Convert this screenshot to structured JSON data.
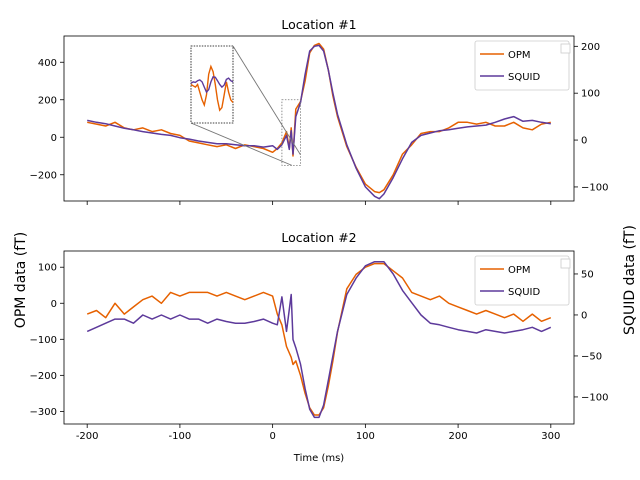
{
  "chart_data": {
    "type": "line",
    "shared_xlabel": "Time (ms)",
    "shared_ylabel_left": "OPM data (fT)",
    "shared_ylabel_right": "SQUID data (fT)",
    "colors": {
      "opm": "#e66100",
      "squid": "#5d3a9b"
    },
    "panels": [
      {
        "title": "Location #1",
        "xlim": [
          -225,
          325
        ],
        "ylim_left": [
          -340,
          540
        ],
        "ylim_right": [
          -130,
          222
        ],
        "xticks": [
          -200,
          -100,
          0,
          100,
          200,
          300
        ],
        "yticks_left": [
          -200,
          0,
          200,
          400
        ],
        "yticks_right": [
          -100,
          0,
          100,
          200
        ],
        "legend": [
          "OPM",
          "SQUID"
        ],
        "legend_position": "top-right",
        "series": [
          {
            "name": "OPM",
            "axis": "left",
            "x": [
              -200,
              -190,
              -180,
              -170,
              -160,
              -150,
              -140,
              -130,
              -120,
              -110,
              -100,
              -90,
              -80,
              -70,
              -60,
              -50,
              -40,
              -30,
              -20,
              -10,
              0,
              5,
              10,
              15,
              18,
              20,
              22,
              25,
              30,
              35,
              40,
              45,
              50,
              55,
              60,
              65,
              70,
              80,
              90,
              100,
              110,
              115,
              120,
              130,
              140,
              150,
              160,
              170,
              180,
              190,
              200,
              210,
              220,
              230,
              240,
              250,
              260,
              270,
              280,
              290,
              300
            ],
            "values": [
              80,
              70,
              60,
              80,
              50,
              40,
              50,
              30,
              40,
              20,
              10,
              -20,
              -30,
              -40,
              -50,
              -40,
              -60,
              -40,
              -50,
              -60,
              -80,
              -60,
              -30,
              30,
              -60,
              50,
              -100,
              150,
              190,
              300,
              450,
              490,
              500,
              470,
              360,
              220,
              110,
              -50,
              -160,
              -250,
              -290,
              -295,
              -280,
              -200,
              -90,
              -40,
              20,
              30,
              30,
              50,
              80,
              80,
              70,
              80,
              60,
              60,
              80,
              50,
              40,
              70,
              80
            ]
          },
          {
            "name": "SQUID",
            "axis": "right",
            "x": [
              -200,
              -190,
              -180,
              -170,
              -160,
              -150,
              -140,
              -130,
              -120,
              -110,
              -100,
              -90,
              -80,
              -70,
              -60,
              -50,
              -40,
              -30,
              -20,
              -10,
              0,
              5,
              10,
              15,
              18,
              20,
              22,
              25,
              30,
              35,
              40,
              45,
              50,
              55,
              60,
              65,
              70,
              80,
              90,
              100,
              110,
              115,
              120,
              130,
              140,
              150,
              160,
              170,
              180,
              190,
              200,
              210,
              220,
              230,
              240,
              250,
              260,
              270,
              280,
              290,
              300
            ],
            "values": [
              42,
              38,
              35,
              30,
              25,
              22,
              18,
              15,
              12,
              10,
              5,
              2,
              -2,
              -5,
              -8,
              -8,
              -10,
              -12,
              -12,
              -15,
              -12,
              -20,
              -10,
              10,
              -20,
              20,
              -30,
              50,
              80,
              140,
              190,
              200,
              202,
              190,
              150,
              100,
              55,
              -10,
              -60,
              -100,
              -120,
              -125,
              -115,
              -80,
              -40,
              -5,
              10,
              15,
              20,
              22,
              25,
              28,
              30,
              32,
              38,
              45,
              50,
              40,
              42,
              38,
              35
            ]
          }
        ],
        "inset_values": [
          {
            "series": "OPM",
            "values": [
              150,
              145,
              140,
              150,
              120,
              90,
              70,
              110,
              190,
              220,
              200,
              150,
              90,
              50,
              60,
              110,
              160,
              120,
              90,
              80
            ]
          },
          {
            "series": "SQUID",
            "values": [
              155,
              160,
              158,
              165,
              168,
              160,
              140,
              120,
              130,
              160,
              180,
              178,
              165,
              150,
              140,
              148,
              170,
              175,
              165,
              160
            ]
          }
        ]
      },
      {
        "title": "Location #2",
        "xlim": [
          -225,
          325
        ],
        "ylim_left": [
          -335,
          145
        ],
        "ylim_right": [
          -133,
          78
        ],
        "xticks": [
          -200,
          -100,
          0,
          100,
          200,
          300
        ],
        "yticks_left": [
          -300,
          -200,
          -100,
          0,
          100
        ],
        "yticks_right": [
          -100,
          -50,
          0,
          50
        ],
        "legend": [
          "OPM",
          "SQUID"
        ],
        "legend_position": "top-right",
        "series": [
          {
            "name": "OPM",
            "axis": "left",
            "x": [
              -200,
              -190,
              -180,
              -170,
              -160,
              -150,
              -140,
              -130,
              -120,
              -110,
              -100,
              -90,
              -80,
              -70,
              -60,
              -50,
              -40,
              -30,
              -20,
              -10,
              0,
              5,
              10,
              15,
              20,
              22,
              25,
              30,
              35,
              40,
              45,
              50,
              55,
              60,
              65,
              70,
              80,
              90,
              100,
              110,
              120,
              130,
              140,
              150,
              160,
              170,
              180,
              190,
              200,
              210,
              220,
              230,
              240,
              250,
              260,
              270,
              280,
              290,
              300
            ],
            "values": [
              -30,
              -20,
              -40,
              0,
              -30,
              -10,
              10,
              20,
              0,
              30,
              20,
              30,
              30,
              30,
              20,
              30,
              20,
              10,
              20,
              30,
              20,
              -30,
              -60,
              -120,
              -150,
              -170,
              -160,
              -200,
              -250,
              -290,
              -310,
              -310,
              -290,
              -230,
              -160,
              -80,
              40,
              80,
              100,
              110,
              110,
              90,
              70,
              30,
              20,
              10,
              20,
              0,
              -10,
              -20,
              -30,
              -20,
              -30,
              -40,
              -30,
              -50,
              -30,
              -50,
              -40
            ]
          },
          {
            "name": "SQUID",
            "axis": "right",
            "x": [
              -200,
              -190,
              -180,
              -170,
              -160,
              -150,
              -140,
              -130,
              -120,
              -110,
              -100,
              -90,
              -80,
              -70,
              -60,
              -50,
              -40,
              -30,
              -20,
              -10,
              0,
              5,
              10,
              15,
              20,
              22,
              25,
              30,
              35,
              40,
              45,
              50,
              55,
              60,
              65,
              70,
              80,
              90,
              100,
              110,
              120,
              130,
              140,
              150,
              160,
              170,
              180,
              190,
              200,
              210,
              220,
              230,
              240,
              250,
              260,
              270,
              280,
              290,
              300
            ],
            "values": [
              -20,
              -15,
              -10,
              -5,
              -5,
              -10,
              0,
              -5,
              0,
              -5,
              0,
              -5,
              -5,
              -10,
              -5,
              -8,
              -10,
              -10,
              -8,
              -5,
              -10,
              -12,
              22,
              -20,
              25,
              -30,
              -40,
              -60,
              -90,
              -115,
              -125,
              -125,
              -110,
              -80,
              -50,
              -20,
              25,
              45,
              60,
              65,
              65,
              50,
              30,
              15,
              0,
              -10,
              -12,
              -15,
              -18,
              -20,
              -22,
              -18,
              -20,
              -22,
              -20,
              -18,
              -15,
              -20,
              -15
            ]
          }
        ]
      }
    ]
  }
}
